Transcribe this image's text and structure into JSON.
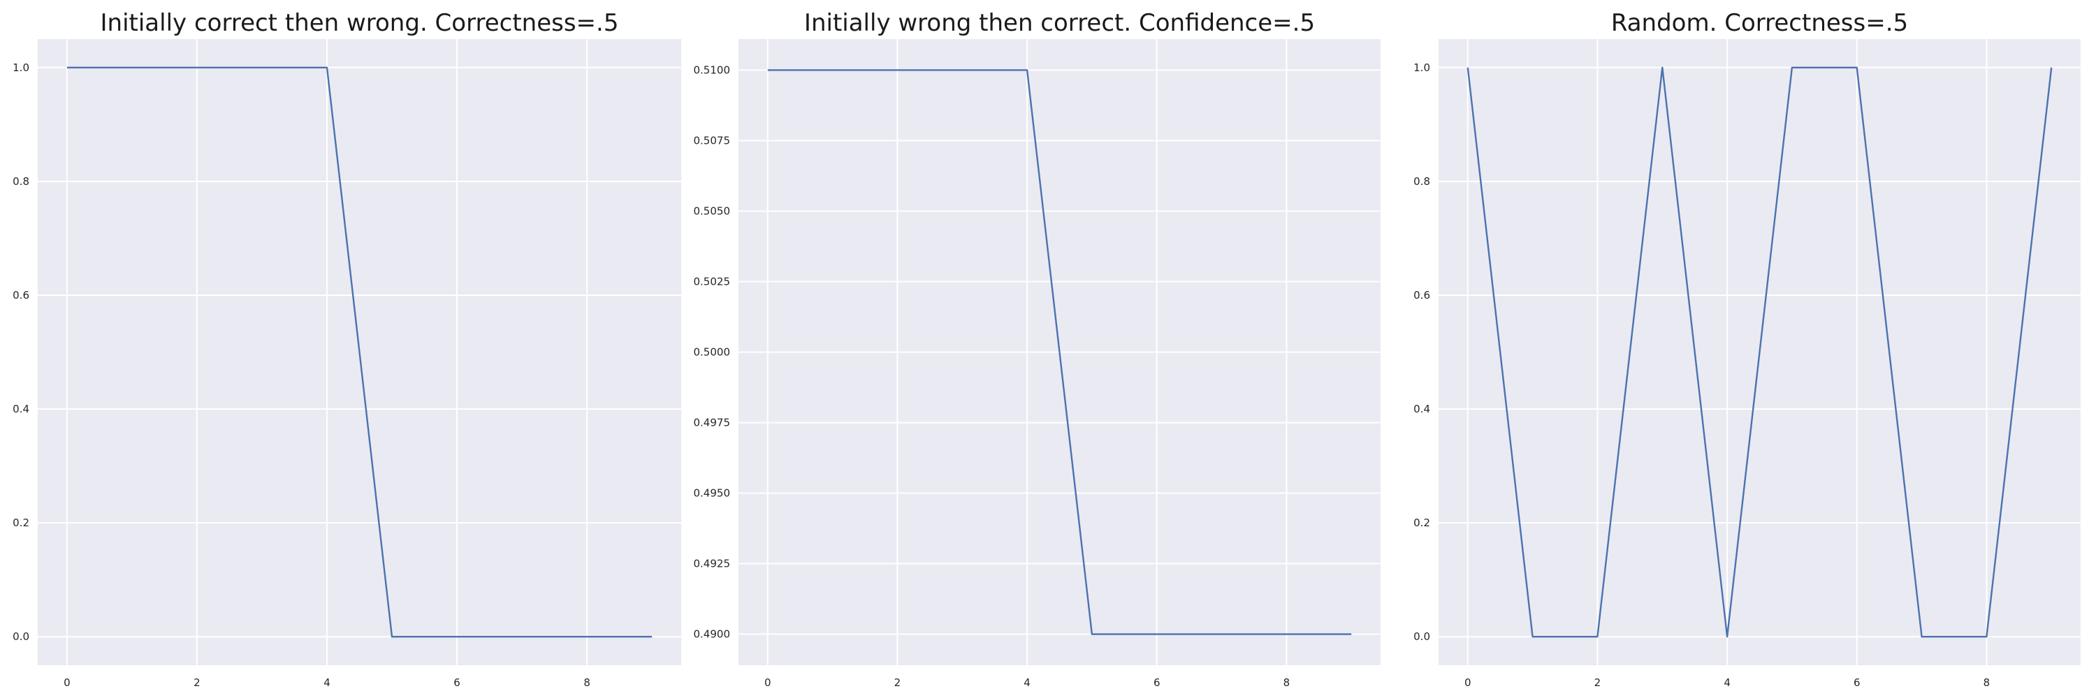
{
  "colors": {
    "plot_background": "#eaeaf2",
    "grid": "#ffffff",
    "series": "#4c72b0"
  },
  "chart_data": [
    {
      "type": "line",
      "title": "Initially correct then wrong. Correctness=.5",
      "xlabel": "",
      "ylabel": "",
      "xlim": [
        -0.45,
        9.45
      ],
      "ylim": [
        -0.05,
        1.05
      ],
      "xticks": [
        0,
        2,
        4,
        6,
        8
      ],
      "xtick_labels": [
        "0",
        "2",
        "4",
        "6",
        "8"
      ],
      "yticks": [
        0.0,
        0.2,
        0.4,
        0.6,
        0.8,
        1.0
      ],
      "ytick_labels": [
        "0.0",
        "0.2",
        "0.4",
        "0.6",
        "0.8",
        "1.0"
      ],
      "grid": true,
      "series": [
        {
          "x": [
            0,
            1,
            2,
            3,
            4,
            5,
            6,
            7,
            8,
            9
          ],
          "values": [
            1,
            1,
            1,
            1,
            1,
            0,
            0,
            0,
            0,
            0
          ]
        }
      ]
    },
    {
      "type": "line",
      "title": "Initially wrong then correct. Confidence=.5",
      "xlabel": "",
      "ylabel": "",
      "xlim": [
        -0.45,
        9.45
      ],
      "ylim": [
        0.4889,
        0.5111
      ],
      "xticks": [
        0,
        2,
        4,
        6,
        8
      ],
      "xtick_labels": [
        "0",
        "2",
        "4",
        "6",
        "8"
      ],
      "yticks": [
        0.49,
        0.4925,
        0.495,
        0.4975,
        0.5,
        0.5025,
        0.505,
        0.5075,
        0.51
      ],
      "ytick_labels": [
        "0.4900",
        "0.4925",
        "0.4950",
        "0.4975",
        "0.5000",
        "0.5025",
        "0.5050",
        "0.5075",
        "0.5100"
      ],
      "grid": true,
      "series": [
        {
          "x": [
            0,
            1,
            2,
            3,
            4,
            5,
            6,
            7,
            8,
            9
          ],
          "values": [
            0.51,
            0.51,
            0.51,
            0.51,
            0.51,
            0.49,
            0.49,
            0.49,
            0.49,
            0.49
          ]
        }
      ]
    },
    {
      "type": "line",
      "title": "Random. Correctness=.5",
      "xlabel": "",
      "ylabel": "",
      "xlim": [
        -0.45,
        9.45
      ],
      "ylim": [
        -0.05,
        1.05
      ],
      "xticks": [
        0,
        2,
        4,
        6,
        8
      ],
      "xtick_labels": [
        "0",
        "2",
        "4",
        "6",
        "8"
      ],
      "yticks": [
        0.0,
        0.2,
        0.4,
        0.6,
        0.8,
        1.0
      ],
      "ytick_labels": [
        "0.0",
        "0.2",
        "0.4",
        "0.6",
        "0.8",
        "1.0"
      ],
      "grid": true,
      "series": [
        {
          "x": [
            0,
            1,
            2,
            3,
            4,
            5,
            6,
            7,
            8,
            9
          ],
          "values": [
            1,
            0,
            0,
            1,
            0,
            1,
            1,
            0,
            0,
            1
          ]
        }
      ]
    }
  ]
}
